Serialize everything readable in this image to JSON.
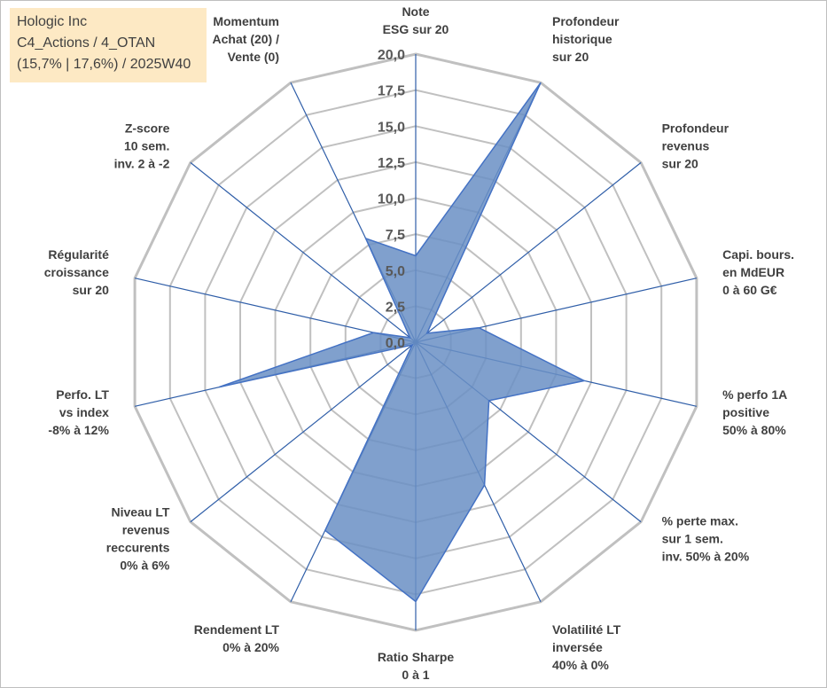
{
  "info": {
    "company": "Hologic Inc",
    "category": "C4_Actions / 4_OTAN",
    "metrics": "(15,7% | 17,6%) / 2025W40"
  },
  "chart_data": {
    "type": "radar",
    "scale": {
      "min": 0,
      "max": 20,
      "step": 2.5
    },
    "tick_labels": [
      "0,0",
      "2,5",
      "5,0",
      "7,5",
      "10,0",
      "12,5",
      "15,0",
      "17,5",
      "20,0"
    ],
    "axes": [
      {
        "label": [
          "Note",
          "ESG sur 20"
        ],
        "value": 6.0
      },
      {
        "label": [
          "Profondeur",
          "historique",
          "sur 20"
        ],
        "value": 20.0
      },
      {
        "label": [
          "Profondeur",
          "revenus",
          "sur 20"
        ],
        "value": 1.0
      },
      {
        "label": [
          "Capi. bours.",
          "en MdEUR",
          "0 à 60 G€"
        ],
        "value": 4.5
      },
      {
        "label": [
          "% perfo 1A",
          "positive",
          "50% à 80%"
        ],
        "value": 12.0
      },
      {
        "label": [
          "% perte max.",
          "sur 1 sem.",
          "inv. 50% à 20%"
        ],
        "value": 6.5
      },
      {
        "label": [
          "Volatilité LT",
          "inversée",
          "40% à 0%"
        ],
        "value": 11.0
      },
      {
        "label": [
          "Ratio Sharpe",
          "0 à 1"
        ],
        "value": 18.0
      },
      {
        "label": [
          "Rendement LT",
          "0% à 20%"
        ],
        "value": 14.5
      },
      {
        "label": [
          "Niveau LT",
          "revenus",
          "reccurents",
          "0% à 6%"
        ],
        "value": 0.3
      },
      {
        "label": [
          "Perfo. LT",
          "vs index",
          "-8% à 12%"
        ],
        "value": 14.0
      },
      {
        "label": [
          "Régularité",
          "croissance",
          "sur 20"
        ],
        "value": 3.0
      },
      {
        "label": [
          "Z-score",
          "10 sem.",
          "inv. 2 à -2"
        ],
        "value": 0.5
      },
      {
        "label": [
          "Momentum",
          "Achat (20) /",
          "Vente (0)"
        ],
        "value": 8.0
      }
    ],
    "colors": {
      "fill": "#6a8fc4",
      "stroke": "#4472c4",
      "grid": "#c0c0c0",
      "spoke": "#2f5ea8"
    }
  }
}
